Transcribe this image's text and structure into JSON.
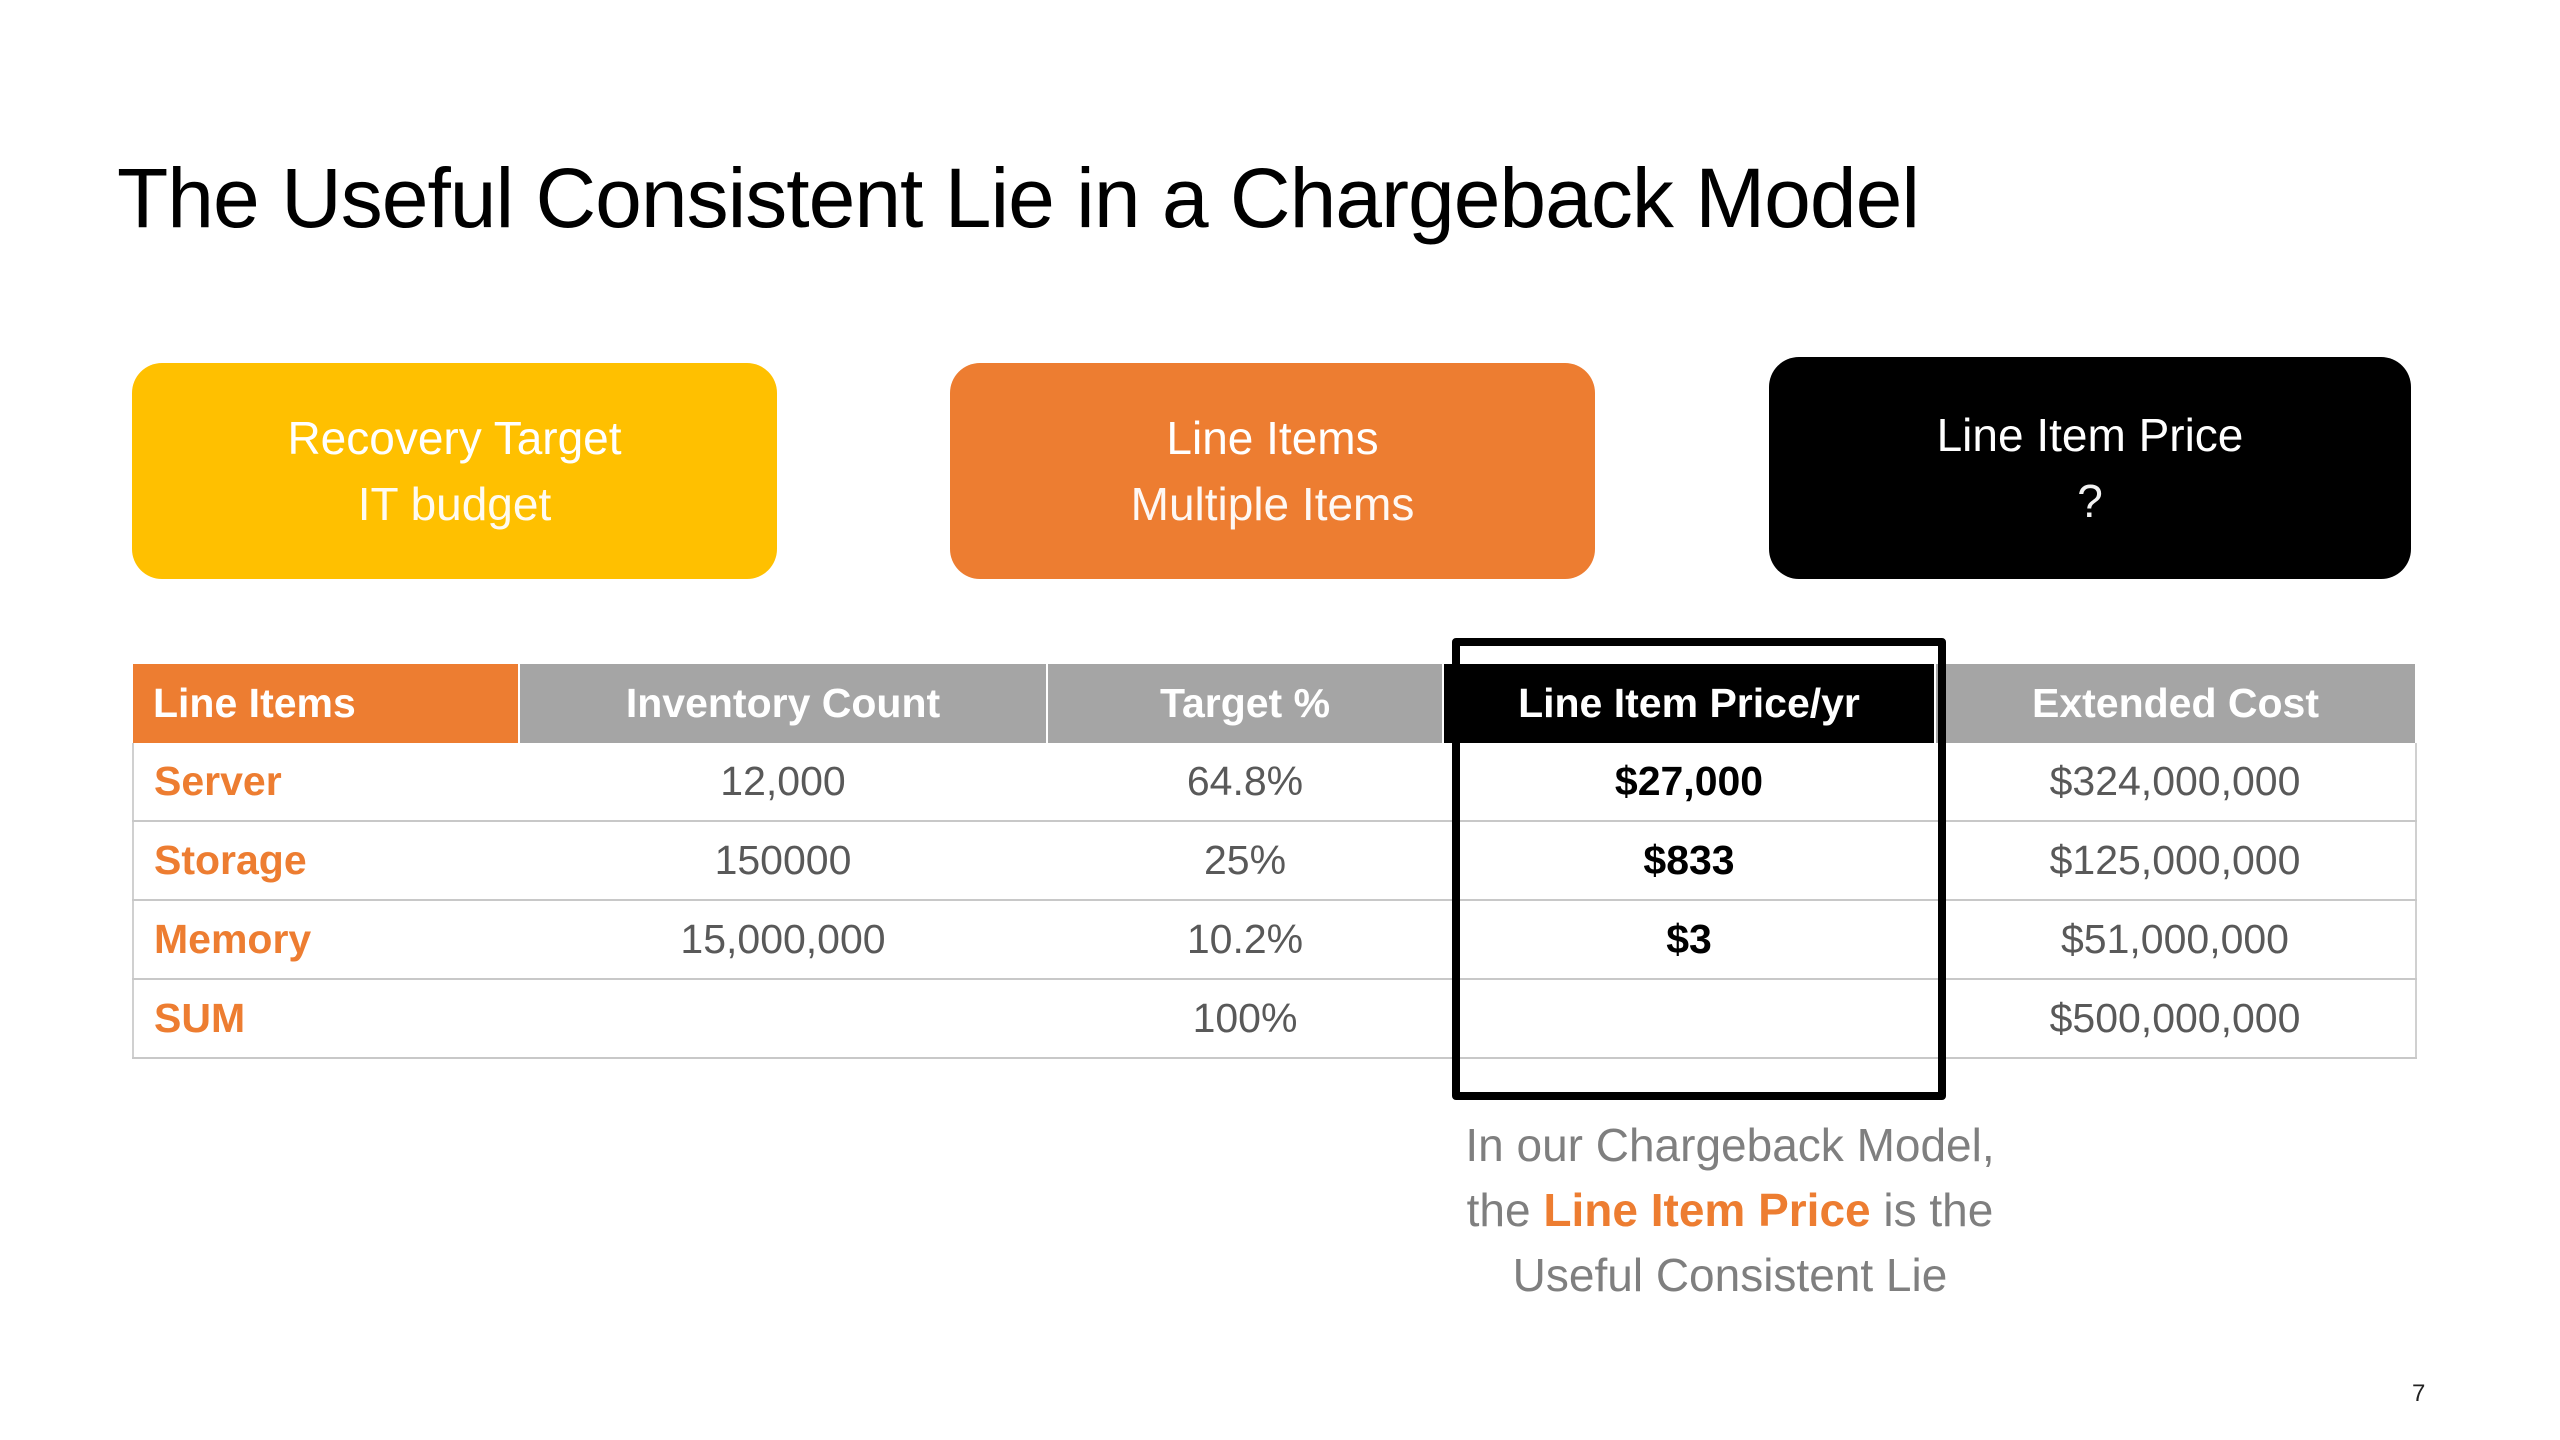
{
  "slide": {
    "title": "The Useful Consistent Lie in a Chargeback Model",
    "page_number": "7"
  },
  "boxes": [
    {
      "title": "Recovery Target",
      "subtitle": "IT budget",
      "color": "#ffc000"
    },
    {
      "title": "Line Items",
      "subtitle": "Multiple Items",
      "color": "#ed7d31"
    },
    {
      "title": "Line Item Price",
      "subtitle": "?",
      "color": "#000000"
    }
  ],
  "table": {
    "headers": [
      "Line Items",
      "Inventory Count",
      "Target %",
      "Line Item Price/yr",
      "Extended Cost"
    ],
    "rows": [
      {
        "item": "Server",
        "count": "12,000",
        "target": "64.8%",
        "price": "$27,000",
        "extended": "$324,000,000"
      },
      {
        "item": "Storage",
        "count": "150000",
        "target": "25%",
        "price": "$833",
        "extended": "$125,000,000"
      },
      {
        "item": "Memory",
        "count": "15,000,000",
        "target": "10.2%",
        "price": "$3",
        "extended": "$51,000,000"
      },
      {
        "item": "SUM",
        "count": "",
        "target": "100%",
        "price": "",
        "extended": "$500,000,000"
      }
    ]
  },
  "caption": {
    "line1": "In our Chargeback Model,",
    "line2_pre": "the ",
    "line2_accent": "Line Item Price",
    "line2_post": " is the",
    "line3": "Useful Consistent Lie"
  },
  "colors": {
    "accent_orange": "#ed7d31",
    "accent_yellow": "#ffc000",
    "header_gray": "#a5a5a5",
    "text_gray": "#595959"
  }
}
